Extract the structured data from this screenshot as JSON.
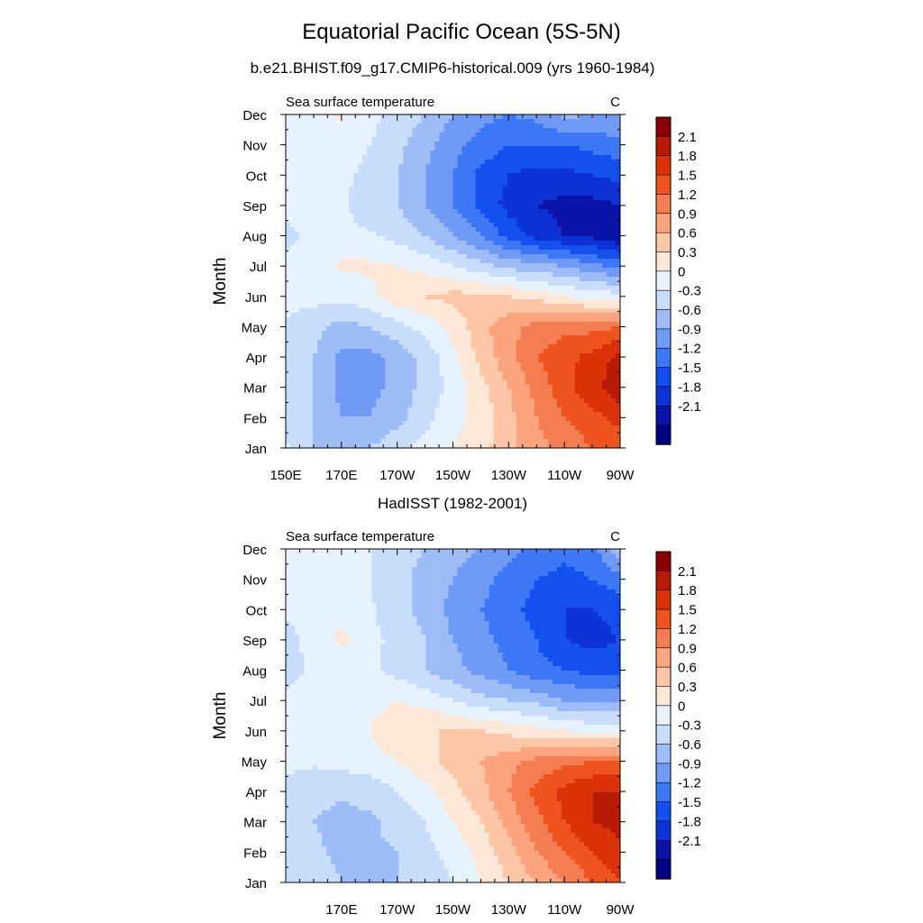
{
  "figure": {
    "title": "Equatorial Pacific Ocean (5S-5N)"
  },
  "colorbar": {
    "colors": [
      "#000080",
      "#0a14a8",
      "#0d32d6",
      "#1450f0",
      "#3c78f5",
      "#6f9af5",
      "#9dbcf8",
      "#c8dcfc",
      "#e6f2fe",
      "#fde7d6",
      "#fdc6a6",
      "#fba47e",
      "#f57d52",
      "#f0541e",
      "#dc320a",
      "#b81a05",
      "#8b0000"
    ],
    "levels": [
      -2.1,
      -1.8,
      -1.5,
      -1.2,
      -0.9,
      -0.6,
      -0.3,
      0,
      0.3,
      0.6,
      0.9,
      1.2,
      1.5,
      1.8,
      2.1
    ],
    "level_labels": [
      "-2.1",
      "-1.8",
      "-1.5",
      "-1.2",
      "-0.9",
      "-0.6",
      "-0.3",
      "0",
      "0.3",
      "0.6",
      "0.9",
      "1.2",
      "1.5",
      "1.8",
      "2.1"
    ]
  },
  "chart_data": [
    {
      "type": "heatmap",
      "title": "b.e21.BHIST.f09_g17.CMIP6-historical.009 (yrs 1960-1984)",
      "left_label": "Sea surface temperature",
      "right_label": "C",
      "ylabel": "Month",
      "x_ticks": [
        "150E",
        "170E",
        "170W",
        "150W",
        "130W",
        "110W",
        "90W"
      ],
      "y_ticks": [
        "Jan",
        "Feb",
        "Mar",
        "Apr",
        "May",
        "Jun",
        "Jul",
        "Aug",
        "Sep",
        "Oct",
        "Nov",
        "Dec"
      ],
      "x_range_deg_east": [
        150,
        270
      ],
      "x_grid": [
        150,
        160,
        170,
        180,
        190,
        200,
        210,
        220,
        230,
        240,
        250,
        260,
        270
      ],
      "unit": "C",
      "values": [
        [
          0.05,
          -0.3,
          -0.3,
          -0.3,
          -0.1,
          0.1,
          0.3,
          0.5,
          0.8,
          1.1,
          1.3,
          1.5,
          1.6
        ],
        [
          -0.1,
          -0.3,
          -0.6,
          -0.6,
          -0.4,
          -0.1,
          0.2,
          0.4,
          0.8,
          1.2,
          1.5,
          1.7,
          1.9
        ],
        [
          -0.1,
          -0.3,
          -0.7,
          -0.7,
          -0.5,
          -0.2,
          0.1,
          0.5,
          0.9,
          1.3,
          1.7,
          2.0,
          2.3
        ],
        [
          -0.05,
          -0.3,
          -0.7,
          -0.7,
          -0.5,
          -0.2,
          0.2,
          0.7,
          1.1,
          1.5,
          1.7,
          1.9,
          2.2
        ],
        [
          -0.05,
          -0.2,
          -0.4,
          -0.3,
          -0.1,
          0.1,
          0.4,
          0.8,
          1.1,
          1.3,
          1.4,
          1.4,
          1.5
        ],
        [
          0.1,
          0.1,
          0.1,
          0.2,
          0.5,
          0.6,
          0.7,
          0.7,
          0.6,
          0.5,
          0.3,
          0.2,
          0.1
        ],
        [
          0.1,
          0.15,
          0.35,
          0.35,
          0.3,
          0.2,
          0.0,
          -0.2,
          -0.4,
          -0.5,
          -0.6,
          -0.8,
          -1.0
        ],
        [
          -0.1,
          0.1,
          0.1,
          0.05,
          -0.1,
          -0.3,
          -0.6,
          -0.9,
          -1.3,
          -1.6,
          -1.8,
          -1.9,
          -2.1
        ],
        [
          0.1,
          0.1,
          0.05,
          -0.2,
          -0.3,
          -0.6,
          -0.9,
          -1.3,
          -1.6,
          -1.8,
          -1.9,
          -1.9,
          -1.8
        ],
        [
          0.1,
          0.1,
          0.1,
          -0.1,
          -0.3,
          -0.6,
          -0.9,
          -1.3,
          -1.5,
          -1.6,
          -1.6,
          -1.5,
          -1.4
        ],
        [
          0.1,
          0.1,
          0.2,
          0.0,
          -0.2,
          -0.5,
          -0.8,
          -1.0,
          -1.2,
          -1.2,
          -1.2,
          -1.1,
          -1.0
        ],
        [
          0.1,
          0.2,
          0.35,
          0.1,
          -0.1,
          -0.3,
          -0.6,
          -0.8,
          -0.9,
          -0.8,
          -0.5,
          -0.6,
          -0.6
        ]
      ]
    },
    {
      "type": "heatmap",
      "title": "HadISST (1982-2001)",
      "left_label": "Sea surface temperature",
      "right_label": "C",
      "ylabel": "Month",
      "x_ticks": [
        "170E",
        "170W",
        "150W",
        "130W",
        "110W",
        "90W"
      ],
      "y_ticks": [
        "Jan",
        "Feb",
        "Mar",
        "Apr",
        "May",
        "Jun",
        "Jul",
        "Aug",
        "Sep",
        "Oct",
        "Nov",
        "Dec"
      ],
      "x_range_deg_east": [
        150,
        270
      ],
      "x_grid": [
        150,
        160,
        170,
        180,
        190,
        200,
        210,
        220,
        230,
        240,
        250,
        260,
        270
      ],
      "unit": "C",
      "values": [
        [
          -0.05,
          -0.2,
          -0.3,
          -0.3,
          -0.3,
          -0.2,
          0.0,
          0.3,
          0.6,
          0.9,
          1.2,
          1.5,
          1.8
        ],
        [
          -0.1,
          -0.25,
          -0.35,
          -0.35,
          -0.3,
          -0.1,
          0.1,
          0.4,
          0.8,
          1.2,
          1.5,
          1.8,
          2.0
        ],
        [
          -0.1,
          -0.3,
          -0.4,
          -0.35,
          -0.2,
          0.0,
          0.3,
          0.6,
          1.0,
          1.4,
          1.8,
          2.1,
          2.2
        ],
        [
          -0.05,
          -0.2,
          -0.25,
          -0.2,
          0.0,
          0.2,
          0.5,
          0.8,
          1.2,
          1.6,
          1.9,
          2.1,
          2.1
        ],
        [
          0.05,
          0.05,
          0.1,
          0.2,
          0.3,
          0.5,
          0.7,
          0.9,
          1.1,
          1.3,
          1.4,
          1.5,
          1.5
        ],
        [
          0.1,
          0.1,
          0.2,
          0.3,
          0.5,
          0.6,
          0.6,
          0.6,
          0.5,
          0.4,
          0.3,
          0.2,
          0.2
        ],
        [
          0.05,
          0.1,
          0.15,
          0.2,
          0.3,
          0.2,
          0.0,
          -0.2,
          -0.3,
          -0.4,
          -0.6,
          -0.6,
          -0.6
        ],
        [
          -0.1,
          0.05,
          0.05,
          0.05,
          -0.1,
          -0.3,
          -0.5,
          -0.7,
          -0.9,
          -1.1,
          -1.2,
          -1.3,
          -1.3
        ],
        [
          -0.1,
          0.1,
          0.4,
          0.1,
          -0.1,
          -0.3,
          -0.6,
          -0.8,
          -1.0,
          -1.2,
          -1.5,
          -1.6,
          -1.5
        ],
        [
          0.05,
          0.1,
          0.15,
          0.05,
          -0.2,
          -0.4,
          -0.7,
          -0.9,
          -1.1,
          -1.3,
          -1.5,
          -1.5,
          -1.4
        ],
        [
          0.1,
          0.1,
          0.1,
          0.0,
          -0.2,
          -0.4,
          -0.6,
          -0.8,
          -1.0,
          -1.2,
          -1.3,
          -1.2,
          -1.0
        ],
        [
          0.1,
          0.15,
          0.1,
          0.0,
          -0.2,
          -0.3,
          -0.5,
          -0.6,
          -0.8,
          -1.0,
          -1.1,
          -1.0,
          -0.4
        ]
      ]
    }
  ]
}
